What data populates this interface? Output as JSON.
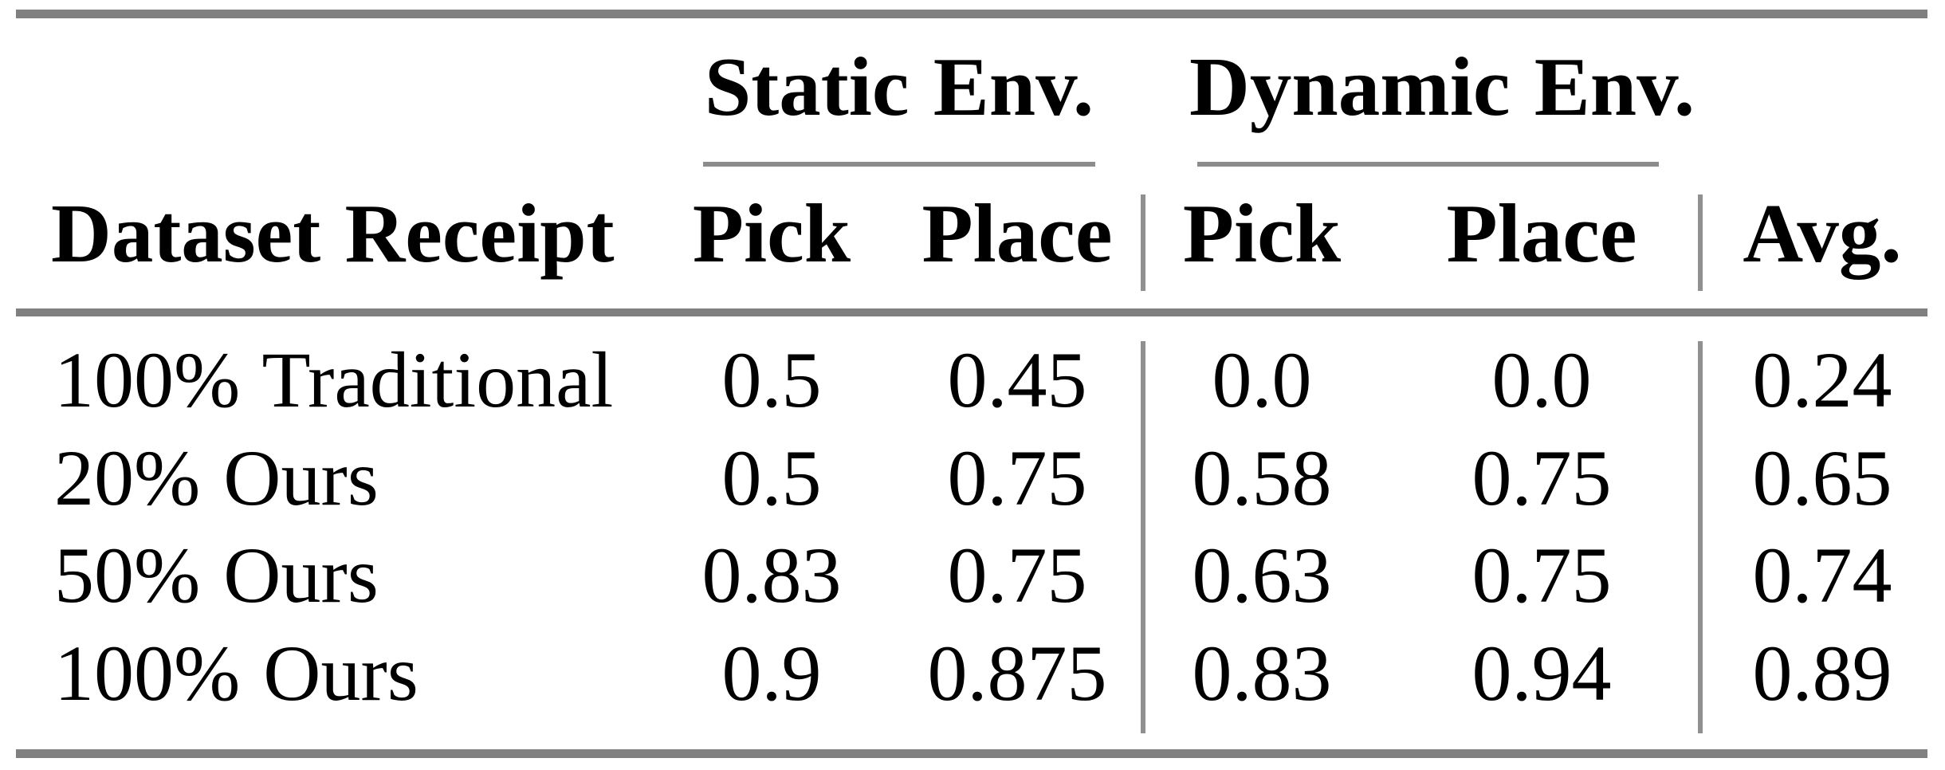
{
  "table": {
    "col_groups": [
      {
        "id": "static",
        "label": "Static Env."
      },
      {
        "id": "dynamic",
        "label": "Dynamic Env."
      }
    ],
    "header": {
      "row_label": "Dataset Receipt",
      "static_pick": "Pick",
      "static_place": "Place",
      "dynamic_pick": "Pick",
      "dynamic_place": "Place",
      "avg": "Avg."
    },
    "rows": [
      {
        "label": "100% Traditional",
        "static_pick": "0.5",
        "static_place": "0.45",
        "dynamic_pick": "0.0",
        "dynamic_place": "0.0",
        "avg": "0.24"
      },
      {
        "label": "20% Ours",
        "static_pick": "0.5",
        "static_place": "0.75",
        "dynamic_pick": "0.58",
        "dynamic_place": "0.75",
        "avg": "0.65"
      },
      {
        "label": "50% Ours",
        "static_pick": "0.83",
        "static_place": "0.75",
        "dynamic_pick": "0.63",
        "dynamic_place": "0.75",
        "avg": "0.74"
      },
      {
        "label": "100% Ours",
        "static_pick": "0.9",
        "static_place": "0.875",
        "dynamic_pick": "0.83",
        "dynamic_place": "0.94",
        "avg": "0.89"
      }
    ]
  },
  "colors": {
    "text": "#000000",
    "background": "#ffffff",
    "thick_rule": "#808080",
    "cmidrule": "#8c8c8c",
    "vertical_divider": "#909090"
  }
}
